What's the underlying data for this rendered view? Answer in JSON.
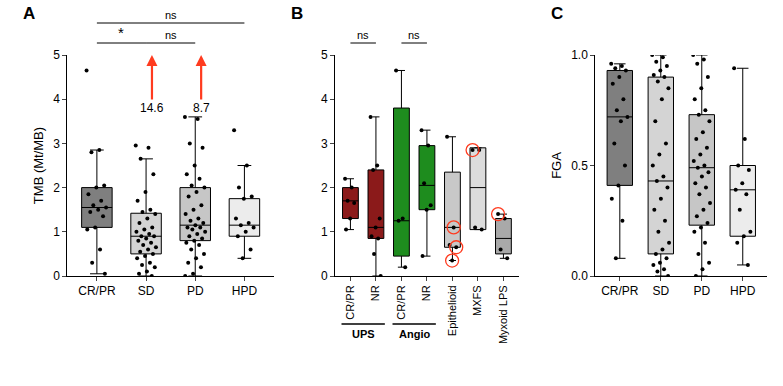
{
  "chart_data": [
    {
      "type": "box",
      "title": "A",
      "y_label": "TMB (Mt/MB)",
      "categories": [
        "CR/PR",
        "SD",
        "PD",
        "HPD"
      ],
      "colors": [
        "#7f7f7f",
        "#d4d4d4",
        "#c6c6c6",
        "#ececec"
      ],
      "ylim": [
        0,
        5
      ],
      "yticks": [
        0,
        1,
        2,
        3,
        4,
        5
      ],
      "boxes": [
        {
          "q1": 1.1,
          "median": 1.55,
          "q3": 2.0,
          "lower": 0.05,
          "upper": 2.85,
          "points": [
            4.65,
            2.85,
            2.8,
            2.05,
            2.0,
            1.85,
            1.7,
            1.6,
            1.55,
            1.5,
            1.45,
            1.35,
            1.1,
            1.05,
            0.6,
            0.3,
            0.05
          ]
        },
        {
          "q1": 0.5,
          "median": 0.9,
          "q3": 1.42,
          "lower": 0,
          "upper": 2.65,
          "points": [
            2.95,
            2.9,
            2.65,
            2.3,
            1.9,
            1.7,
            1.5,
            1.45,
            1.4,
            1.3,
            1.2,
            1.1,
            1.05,
            1.0,
            0.95,
            0.9,
            0.9,
            0.85,
            0.8,
            0.75,
            0.7,
            0.65,
            0.6,
            0.55,
            0.5,
            0.45,
            0.4,
            0.3,
            0.25,
            0.2,
            0.1,
            0.05,
            0.0
          ]
        },
        {
          "q1": 0.8,
          "median": 1.15,
          "q3": 2.0,
          "lower": 0,
          "upper": 3.6,
          "points": [
            3.6,
            3.55,
            3.0,
            2.9,
            2.5,
            2.3,
            2.2,
            2.05,
            2.0,
            1.9,
            1.8,
            1.6,
            1.5,
            1.4,
            1.3,
            1.25,
            1.2,
            1.15,
            1.1,
            1.1,
            1.05,
            1.0,
            0.95,
            0.9,
            0.85,
            0.8,
            0.75,
            0.7,
            0.6,
            0.5,
            0.4,
            0.3,
            0.2,
            0.05,
            0.0
          ]
        },
        {
          "q1": 0.9,
          "median": 1.15,
          "q3": 1.75,
          "lower": 0.4,
          "upper": 2.5,
          "points": [
            3.3,
            2.5,
            2.0,
            1.8,
            1.75,
            1.3,
            1.2,
            1.15,
            1.1,
            1.0,
            0.9,
            0.6,
            0.4
          ]
        }
      ],
      "offscale": [
        {
          "category": 1,
          "value": 14.6,
          "color": "#ff3b1f"
        },
        {
          "category": 2,
          "value": 8.7,
          "color": "#ff3b1f"
        }
      ],
      "brackets": [
        {
          "from": 0,
          "to": 1,
          "label": "*"
        },
        {
          "from": 1,
          "to": 2,
          "label": "ns"
        },
        {
          "from": 0,
          "to": 3,
          "label": "ns"
        }
      ]
    },
    {
      "type": "box",
      "title": "B",
      "categories": [
        "CR/PR",
        "NR",
        "CR/PR",
        "NR",
        "Epithelioid",
        "MXFS",
        "Myxoid LPS"
      ],
      "colors": [
        "#8b1a1a",
        "#8b1a1a",
        "#1e8c1e",
        "#1e8c1e",
        "#c8c8c8",
        "#dcdcdc",
        "#a9a9a9"
      ],
      "ylim": [
        0,
        5
      ],
      "yticks": [
        0,
        1,
        2,
        3,
        4,
        5
      ],
      "groups": [
        {
          "label": "UPS",
          "from": 0,
          "to": 1
        },
        {
          "label": "Angio",
          "from": 2,
          "to": 3
        }
      ],
      "boxes": [
        {
          "q1": 1.3,
          "median": 1.7,
          "q3": 2.0,
          "lower": 1.05,
          "upper": 2.2,
          "points": [
            2.2,
            2.0,
            1.7,
            1.65,
            1.3,
            1.05
          ]
        },
        {
          "q1": 0.85,
          "median": 1.1,
          "q3": 2.4,
          "lower": 0.0,
          "upper": 3.6,
          "points": [
            3.6,
            2.5,
            2.4,
            1.3,
            1.1,
            0.9,
            0.85,
            0.5,
            0.0
          ]
        },
        {
          "q1": 0.45,
          "median": 1.25,
          "q3": 3.8,
          "lower": 0.2,
          "upper": 4.65,
          "points": [
            4.65,
            1.3,
            1.25,
            0.2
          ]
        },
        {
          "q1": 1.5,
          "median": 2.05,
          "q3": 2.95,
          "lower": 0.45,
          "upper": 3.3,
          "points": [
            3.3,
            2.95,
            2.1,
            1.6,
            1.5,
            0.45
          ]
        },
        {
          "q1": 0.65,
          "median": 1.1,
          "q3": 2.35,
          "lower": 0.35,
          "upper": 3.15,
          "points": [
            3.15,
            1.1,
            0.7,
            0.65,
            0.35
          ],
          "circled": [
            1.1,
            0.65,
            0.35
          ]
        },
        {
          "q1": 1.05,
          "median": 2.0,
          "q3": 2.9,
          "lower": 1.05,
          "upper": 2.9,
          "points": [
            2.85,
            2.85,
            1.1,
            1.05
          ],
          "circled": [
            2.85
          ]
        },
        {
          "q1": 0.5,
          "median": 0.85,
          "q3": 1.3,
          "lower": 0.4,
          "upper": 1.4,
          "points": [
            1.4,
            1.3,
            0.6,
            0.4
          ],
          "circled": [
            1.4
          ]
        }
      ],
      "circle_color": "#ff3b1f",
      "brackets": [
        {
          "from": 0,
          "to": 1,
          "label": "ns"
        },
        {
          "from": 2,
          "to": 3,
          "label": "ns"
        }
      ]
    },
    {
      "type": "box",
      "title": "C",
      "y_label": "FGA",
      "categories": [
        "CR/PR",
        "SD",
        "PD",
        "HPD"
      ],
      "colors": [
        "#7f7f7f",
        "#d4d4d4",
        "#c6c6c6",
        "#ececec"
      ],
      "ylim": [
        0,
        1
      ],
      "yticks": [
        {
          "value": 0,
          "label": "0.0"
        },
        {
          "value": 0.5,
          "label": "0.5"
        },
        {
          "value": 1,
          "label": "1.0"
        }
      ],
      "boxes": [
        {
          "q1": 0.41,
          "median": 0.72,
          "q3": 0.93,
          "lower": 0.08,
          "upper": 0.96,
          "points": [
            0.96,
            0.95,
            0.94,
            0.93,
            0.9,
            0.87,
            0.8,
            0.75,
            0.72,
            0.7,
            0.6,
            0.5,
            0.41,
            0.35,
            0.25,
            0.08
          ]
        },
        {
          "q1": 0.1,
          "median": 0.43,
          "q3": 0.9,
          "lower": 0,
          "upper": 1.0,
          "points": [
            1.0,
            0.99,
            0.97,
            0.95,
            0.93,
            0.91,
            0.9,
            0.88,
            0.85,
            0.8,
            0.7,
            0.6,
            0.55,
            0.5,
            0.45,
            0.43,
            0.4,
            0.35,
            0.3,
            0.25,
            0.2,
            0.15,
            0.12,
            0.1,
            0.08,
            0.06,
            0.05,
            0.03,
            0.02,
            0.0
          ]
        },
        {
          "q1": 0.23,
          "median": 0.49,
          "q3": 0.73,
          "lower": 0,
          "upper": 1.0,
          "points": [
            1.0,
            0.98,
            0.96,
            0.9,
            0.85,
            0.8,
            0.75,
            0.73,
            0.7,
            0.65,
            0.62,
            0.58,
            0.55,
            0.52,
            0.5,
            0.49,
            0.47,
            0.45,
            0.42,
            0.4,
            0.37,
            0.33,
            0.3,
            0.27,
            0.24,
            0.22,
            0.2,
            0.15,
            0.1,
            0.06,
            0.03,
            0.0
          ]
        },
        {
          "q1": 0.18,
          "median": 0.39,
          "q3": 0.5,
          "lower": 0.05,
          "upper": 0.94,
          "points": [
            0.94,
            0.62,
            0.5,
            0.48,
            0.42,
            0.39,
            0.37,
            0.3,
            0.2,
            0.18,
            0.15,
            0.05
          ]
        }
      ]
    }
  ]
}
